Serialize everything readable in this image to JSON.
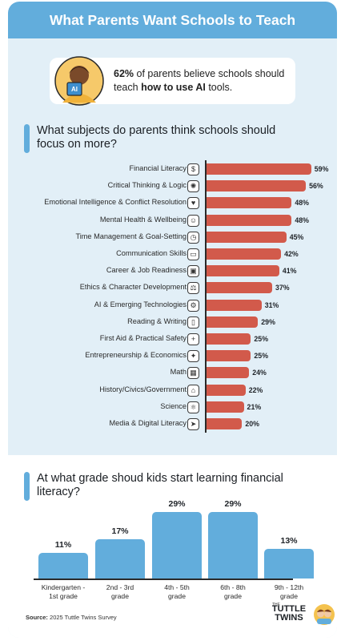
{
  "header": {
    "title": "What Parents Want Schools to Teach"
  },
  "callout": {
    "pct": "62%",
    "text_a": " of parents believe schools should teach ",
    "highlight": "how to use AI",
    "text_b": " tools."
  },
  "section1": {
    "title": "What subjects do parents think schools should focus on more?"
  },
  "section2": {
    "title": "At what grade shoud kids start learning financial literacy?"
  },
  "chart_data": [
    {
      "type": "bar",
      "orientation": "horizontal",
      "categories": [
        "Financial Literacy",
        "Critical Thinking & Logic",
        "Emotional Intelligence & Conflict Resolution",
        "Mental Health & Wellbeing",
        "Time Management & Goal-Setting",
        "Communication Skills",
        "Career & Job Readiness",
        "Ethics & Character Development",
        "AI & Emerging Technologies",
        "Reading & Writing",
        "First Aid & Practical Safety",
        "Entrepreneurship & Economics",
        "Math",
        "History/Civics/Government",
        "Science",
        "Media & Digital Literacy"
      ],
      "values": [
        59,
        56,
        48,
        48,
        45,
        42,
        41,
        37,
        31,
        29,
        25,
        25,
        24,
        22,
        21,
        20
      ],
      "value_labels": [
        "59%",
        "56%",
        "48%",
        "48%",
        "45%",
        "42%",
        "41%",
        "37%",
        "31%",
        "29%",
        "25%",
        "25%",
        "24%",
        "22%",
        "21%",
        "20%"
      ],
      "icons": [
        "dollar-icon",
        "brain-icon",
        "heart-head-icon",
        "head-icon",
        "clock-icon",
        "speech-bubble-icon",
        "briefcase-icon",
        "scales-icon",
        "chip-icon",
        "book-icon",
        "first-aid-icon",
        "lightbulb-dollar-icon",
        "calculator-icon",
        "landmark-icon",
        "atom-icon",
        "cursor-icon"
      ],
      "xlim": [
        0,
        60
      ],
      "color": "#d25a4b"
    },
    {
      "type": "bar",
      "orientation": "vertical",
      "categories": [
        "Kindergarten - 1st grade",
        "2nd - 3rd grade",
        "4th - 5th grade",
        "6th - 8th grade",
        "9th - 12th grade"
      ],
      "category_lines": [
        [
          "Kindergarten -",
          "1st grade"
        ],
        [
          "2nd - 3rd",
          "grade"
        ],
        [
          "4th - 5th",
          "grade"
        ],
        [
          "6th - 8th",
          "grade"
        ],
        [
          "9th - 12th",
          "grade"
        ]
      ],
      "values": [
        11,
        17,
        29,
        29,
        13
      ],
      "value_labels": [
        "11%",
        "17%",
        "29%",
        "29%",
        "13%"
      ],
      "ylim": [
        0,
        30
      ],
      "color": "#62addc"
    }
  ],
  "footer": {
    "source_label": "Source:",
    "source_text": " 2025 Tuttle Twins Survey",
    "logo_the": "THE",
    "logo_line1": "TUTTLE",
    "logo_line2": "TWINS"
  }
}
